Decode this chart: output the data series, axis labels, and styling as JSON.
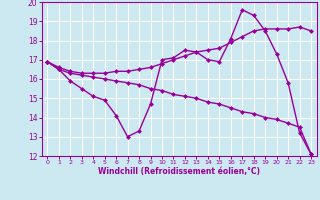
{
  "line1_x": [
    0,
    1,
    2,
    3,
    4,
    5,
    6,
    7,
    8,
    9,
    10,
    11,
    12,
    13,
    14,
    15,
    16,
    17,
    18,
    19,
    20,
    21,
    22,
    23
  ],
  "line1_y": [
    16.9,
    16.6,
    16.4,
    16.3,
    16.3,
    16.3,
    16.4,
    16.4,
    16.5,
    16.6,
    16.8,
    17.0,
    17.2,
    17.4,
    17.5,
    17.6,
    17.9,
    18.2,
    18.5,
    18.6,
    18.6,
    18.6,
    18.7,
    18.5
  ],
  "line2_x": [
    0,
    1,
    2,
    3,
    4,
    5,
    6,
    7,
    8,
    9,
    10,
    11,
    12,
    13,
    14,
    15,
    16,
    17,
    18,
    19,
    20,
    21,
    22,
    23
  ],
  "line2_y": [
    16.9,
    16.5,
    15.9,
    15.5,
    15.1,
    14.9,
    14.1,
    13.0,
    13.3,
    14.7,
    17.0,
    17.1,
    17.5,
    17.4,
    17.0,
    16.9,
    18.1,
    19.6,
    19.3,
    18.5,
    17.3,
    15.8,
    13.2,
    12.1
  ],
  "line3_x": [
    0,
    1,
    2,
    3,
    4,
    5,
    6,
    7,
    8,
    9,
    10,
    11,
    12,
    13,
    14,
    15,
    16,
    17,
    18,
    19,
    20,
    21,
    22,
    23
  ],
  "line3_y": [
    16.9,
    16.5,
    16.3,
    16.2,
    16.1,
    16.0,
    15.9,
    15.8,
    15.7,
    15.5,
    15.4,
    15.2,
    15.1,
    15.0,
    14.8,
    14.7,
    14.5,
    14.3,
    14.2,
    14.0,
    13.9,
    13.7,
    13.5,
    12.1
  ],
  "color": "#990099",
  "background": "#cce8f0",
  "grid_color": "#ffffff",
  "ylim": [
    12,
    20
  ],
  "xlim": [
    -0.5,
    23.5
  ],
  "yticks": [
    12,
    13,
    14,
    15,
    16,
    17,
    18,
    19,
    20
  ],
  "xticks": [
    0,
    1,
    2,
    3,
    4,
    5,
    6,
    7,
    8,
    9,
    10,
    11,
    12,
    13,
    14,
    15,
    16,
    17,
    18,
    19,
    20,
    21,
    22,
    23
  ],
  "xlabel": "Windchill (Refroidissement éolien,°C)",
  "marker": "D",
  "markersize": 2.5,
  "linewidth": 1.0
}
